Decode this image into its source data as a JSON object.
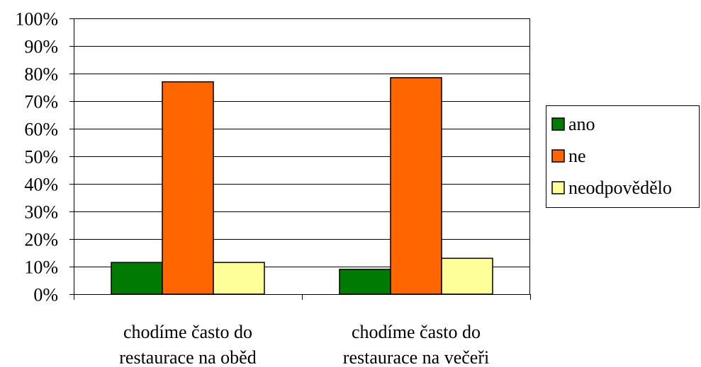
{
  "chart_data": {
    "type": "bar",
    "categories": [
      [
        "chodíme často do",
        "restaurace na oběd"
      ],
      [
        "chodíme často do",
        "restaurace na večeři"
      ]
    ],
    "series": [
      {
        "name": "ano",
        "color": "#007a00",
        "values": [
          11.5,
          9
        ]
      },
      {
        "name": "ne",
        "color": "#ff6600",
        "values": [
          77,
          78.5
        ]
      },
      {
        "name": "neodpovědělo",
        "color": "#ffff99",
        "values": [
          11.5,
          13
        ]
      }
    ],
    "ylim": [
      0,
      100
    ],
    "yticks": [
      "0%",
      "10%",
      "20%",
      "30%",
      "40%",
      "50%",
      "60%",
      "70%",
      "80%",
      "90%",
      "100%"
    ],
    "grid": true,
    "legend_position": "right"
  }
}
